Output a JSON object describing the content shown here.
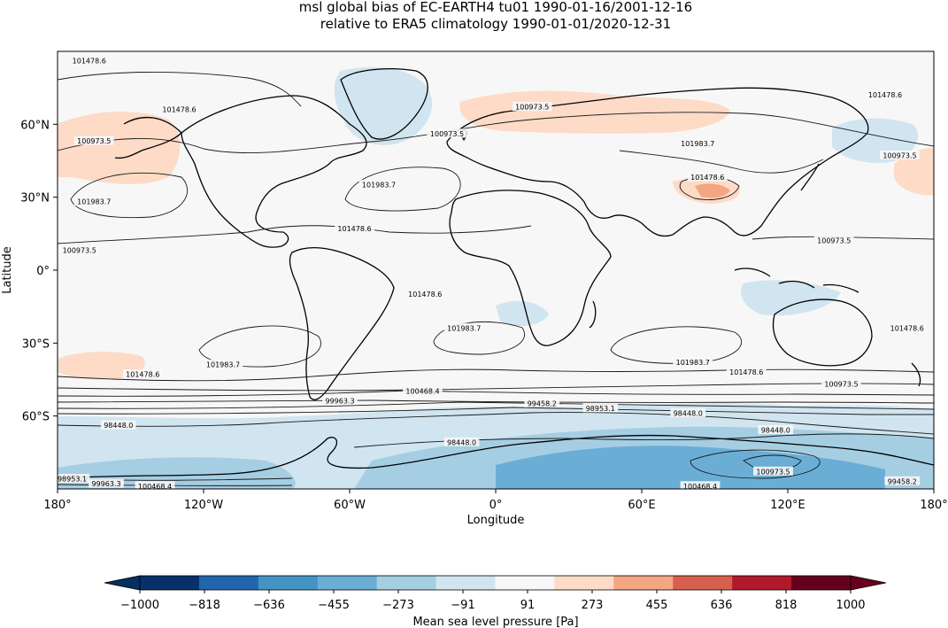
{
  "figure": {
    "title_line1": "msl global bias of EC-EARTH4 tu01 1990-01-16/2001-12-16",
    "title_line2": "relative to ERA5 climatology 1990-01-01/2020-12-31",
    "xlabel": "Longitude",
    "ylabel": "Latitude"
  },
  "map": {
    "projection": "PlateCarree",
    "lon_range": [
      -180,
      180
    ],
    "lat_range": [
      -90,
      90
    ],
    "background_color": "#f7f7f7",
    "coastline_color": "#000000"
  },
  "axes": {
    "x_ticks": [
      {
        "value": -180,
        "label": "180°"
      },
      {
        "value": -120,
        "label": "120°W"
      },
      {
        "value": -60,
        "label": "60°W"
      },
      {
        "value": 0,
        "label": "0°"
      },
      {
        "value": 60,
        "label": "60°E"
      },
      {
        "value": 120,
        "label": "120°E"
      },
      {
        "value": 180,
        "label": "180°"
      }
    ],
    "y_ticks": [
      {
        "value": 60,
        "label": "60°N"
      },
      {
        "value": 30,
        "label": "30°N"
      },
      {
        "value": 0,
        "label": "0°"
      },
      {
        "value": -30,
        "label": "30°S"
      },
      {
        "value": -60,
        "label": "60°S"
      }
    ]
  },
  "chart_data": {
    "type": "heatmap",
    "title": "msl global bias of EC-EARTH4 tu01 1990-01-16/2001-12-16 relative to ERA5 climatology 1990-01-01/2020-12-31",
    "xlabel": "Longitude",
    "ylabel": "Latitude",
    "xlim": [
      -180,
      180
    ],
    "ylim": [
      -90,
      90
    ],
    "colorbar": {
      "label": "Mean sea level pressure [Pa]",
      "extend": "both",
      "levels": [
        -1000,
        -818,
        -636,
        -455,
        -273,
        -91,
        91,
        273,
        455,
        636,
        818,
        1000
      ],
      "tick_labels": [
        "−1000",
        "−818",
        "−636",
        "−455",
        "−273",
        "−91",
        "91",
        "273",
        "455",
        "636",
        "818",
        "1000"
      ],
      "colors": [
        "#08306b",
        "#2166ac",
        "#4393c3",
        "#6aaed6",
        "#a6cee3",
        "#d1e5f0",
        "#f7f7f7",
        "#fddbc7",
        "#f4a582",
        "#d6604d",
        "#b2182b",
        "#67001f"
      ],
      "under_color": "#053061",
      "over_color": "#67001f"
    },
    "contour_levels": [
      98448.0,
      98953.1,
      99458.2,
      99963.3,
      100468.4,
      100973.5,
      101478.6,
      101983.7
    ],
    "contour_labels": [
      {
        "text": "101478.6",
        "lon": -167,
        "lat": 86
      },
      {
        "text": "101478.6",
        "lon": -130,
        "lat": 66
      },
      {
        "text": "100973.5",
        "lon": -165,
        "lat": 53
      },
      {
        "text": "100973.5",
        "lon": -20,
        "lat": 56
      },
      {
        "text": "100973.5",
        "lon": 15,
        "lat": 67
      },
      {
        "text": "101983.7",
        "lon": -48,
        "lat": 35
      },
      {
        "text": "101983.7",
        "lon": -165,
        "lat": 28
      },
      {
        "text": "101983.7",
        "lon": 83,
        "lat": 52
      },
      {
        "text": "101478.6",
        "lon": 87,
        "lat": 38
      },
      {
        "text": "101478.6",
        "lon": -58,
        "lat": 17
      },
      {
        "text": "100973.5",
        "lon": -171,
        "lat": 8
      },
      {
        "text": "100973.5",
        "lon": 166,
        "lat": 47
      },
      {
        "text": "101478.6",
        "lon": 160,
        "lat": 72
      },
      {
        "text": "100973.5",
        "lon": 139,
        "lat": 12
      },
      {
        "text": "101478.6",
        "lon": -29,
        "lat": -10
      },
      {
        "text": "101983.7",
        "lon": -13,
        "lat": -24
      },
      {
        "text": "101983.7",
        "lon": -112,
        "lat": -39
      },
      {
        "text": "101478.6",
        "lon": -145,
        "lat": -43
      },
      {
        "text": "101983.7",
        "lon": 81,
        "lat": -38
      },
      {
        "text": "101478.6",
        "lon": 103,
        "lat": -42
      },
      {
        "text": "100973.5",
        "lon": 142,
        "lat": -47
      },
      {
        "text": "101478.6",
        "lon": 169,
        "lat": -24
      },
      {
        "text": "100468.4",
        "lon": -30,
        "lat": -50
      },
      {
        "text": "99963.3",
        "lon": -64,
        "lat": -54
      },
      {
        "text": "99458.2",
        "lon": 19,
        "lat": -55
      },
      {
        "text": "98953.1",
        "lon": 43,
        "lat": -57
      },
      {
        "text": "98448.0",
        "lon": 79,
        "lat": -59
      },
      {
        "text": "98448.0",
        "lon": -155,
        "lat": -64
      },
      {
        "text": "98448.0",
        "lon": -14,
        "lat": -71
      },
      {
        "text": "98448.0",
        "lon": 115,
        "lat": -66
      },
      {
        "text": "100973.5",
        "lon": 114,
        "lat": -83
      },
      {
        "text": "99458.2",
        "lon": 167,
        "lat": -87
      },
      {
        "text": "98953.1",
        "lon": -174,
        "lat": -86
      },
      {
        "text": "99963.3",
        "lon": -160,
        "lat": -88
      },
      {
        "text": "100468.4",
        "lon": -140,
        "lat": -89
      },
      {
        "text": "100468.4",
        "lon": 84,
        "lat": -89
      }
    ],
    "bias_regions": [
      {
        "category": "-91 to -273",
        "description": "Southern Ocean band and Antarctic coast"
      },
      {
        "category": "-91 to -273",
        "description": "North Atlantic / Greenland / Labrador Sea"
      },
      {
        "category": "-91 to -273",
        "description": "Kamchatka / NE Asia, Indian Ocean, Indonesia"
      },
      {
        "category": "-273 to -455",
        "description": "Antarctic interior patches"
      },
      {
        "category": "91 to 273",
        "description": "North Pacific, Scandinavia / Barents, Tibet, South Pacific west of Chile"
      },
      {
        "category": "273 to 455",
        "description": "Tibetan Plateau core"
      }
    ]
  }
}
